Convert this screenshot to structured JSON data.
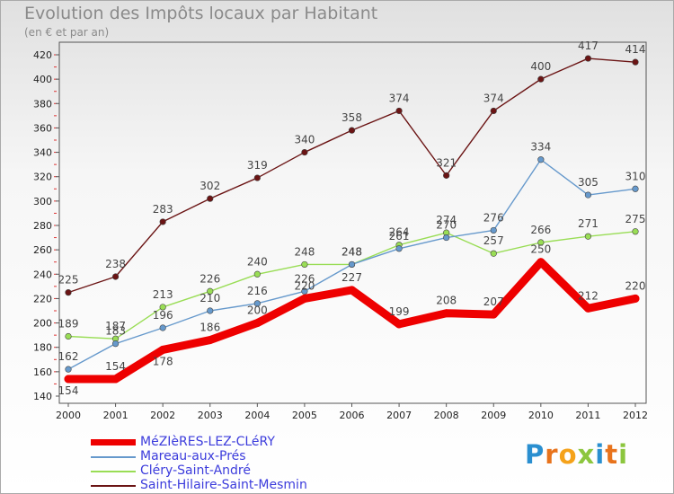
{
  "chart_data": {
    "type": "line",
    "title": "Evolution des Impôts locaux par Habitant",
    "subtitle": "(en € et par an)",
    "categories": [
      "2000",
      "2001",
      "2002",
      "2003",
      "2004",
      "2005",
      "2006",
      "2007",
      "2008",
      "2009",
      "2010",
      "2011",
      "2012"
    ],
    "ylim": [
      140,
      420
    ],
    "yticks": [
      140,
      160,
      180,
      200,
      220,
      240,
      260,
      280,
      300,
      320,
      340,
      360,
      380,
      400,
      420
    ],
    "series": [
      {
        "name": "Saint-Hilaire-Saint-Mesmin",
        "color": "#6b1414",
        "values": [
          225,
          238,
          283,
          302,
          319,
          340,
          358,
          374,
          321,
          374,
          400,
          417,
          414
        ]
      },
      {
        "name": "Cléry-Saint-André",
        "color": "#99dd55",
        "values": [
          189,
          187,
          213,
          226,
          240,
          248,
          248,
          264,
          274,
          257,
          266,
          271,
          275
        ]
      },
      {
        "name": "Mareau-aux-Prés",
        "color": "#6699cc",
        "values": [
          162,
          183,
          196,
          210,
          216,
          226,
          248,
          261,
          270,
          276,
          334,
          305,
          310
        ]
      },
      {
        "name": "MéZIèRES-LEZ-CLéRY",
        "color": "#ee0000",
        "values": [
          154,
          154,
          178,
          186,
          200,
          220,
          227,
          199,
          208,
          207,
          250,
          212,
          220
        ]
      }
    ],
    "legend_order": [
      "MéZIèRES-LEZ-CLéRY",
      "Mareau-aux-Prés",
      "Cléry-Saint-André",
      "Saint-Hilaire-Saint-Mesmin"
    ],
    "grid": false,
    "legend_position": "bottom-left"
  },
  "brand": {
    "name": "Proxiti",
    "letters": [
      "P",
      "r",
      "o",
      "x",
      "i",
      "t",
      "i"
    ],
    "colors": [
      "#2a8fd0",
      "#e8731c",
      "#f5a21a",
      "#8cc63e",
      "#2a8fd0",
      "#e8731c",
      "#8cc63e"
    ]
  }
}
